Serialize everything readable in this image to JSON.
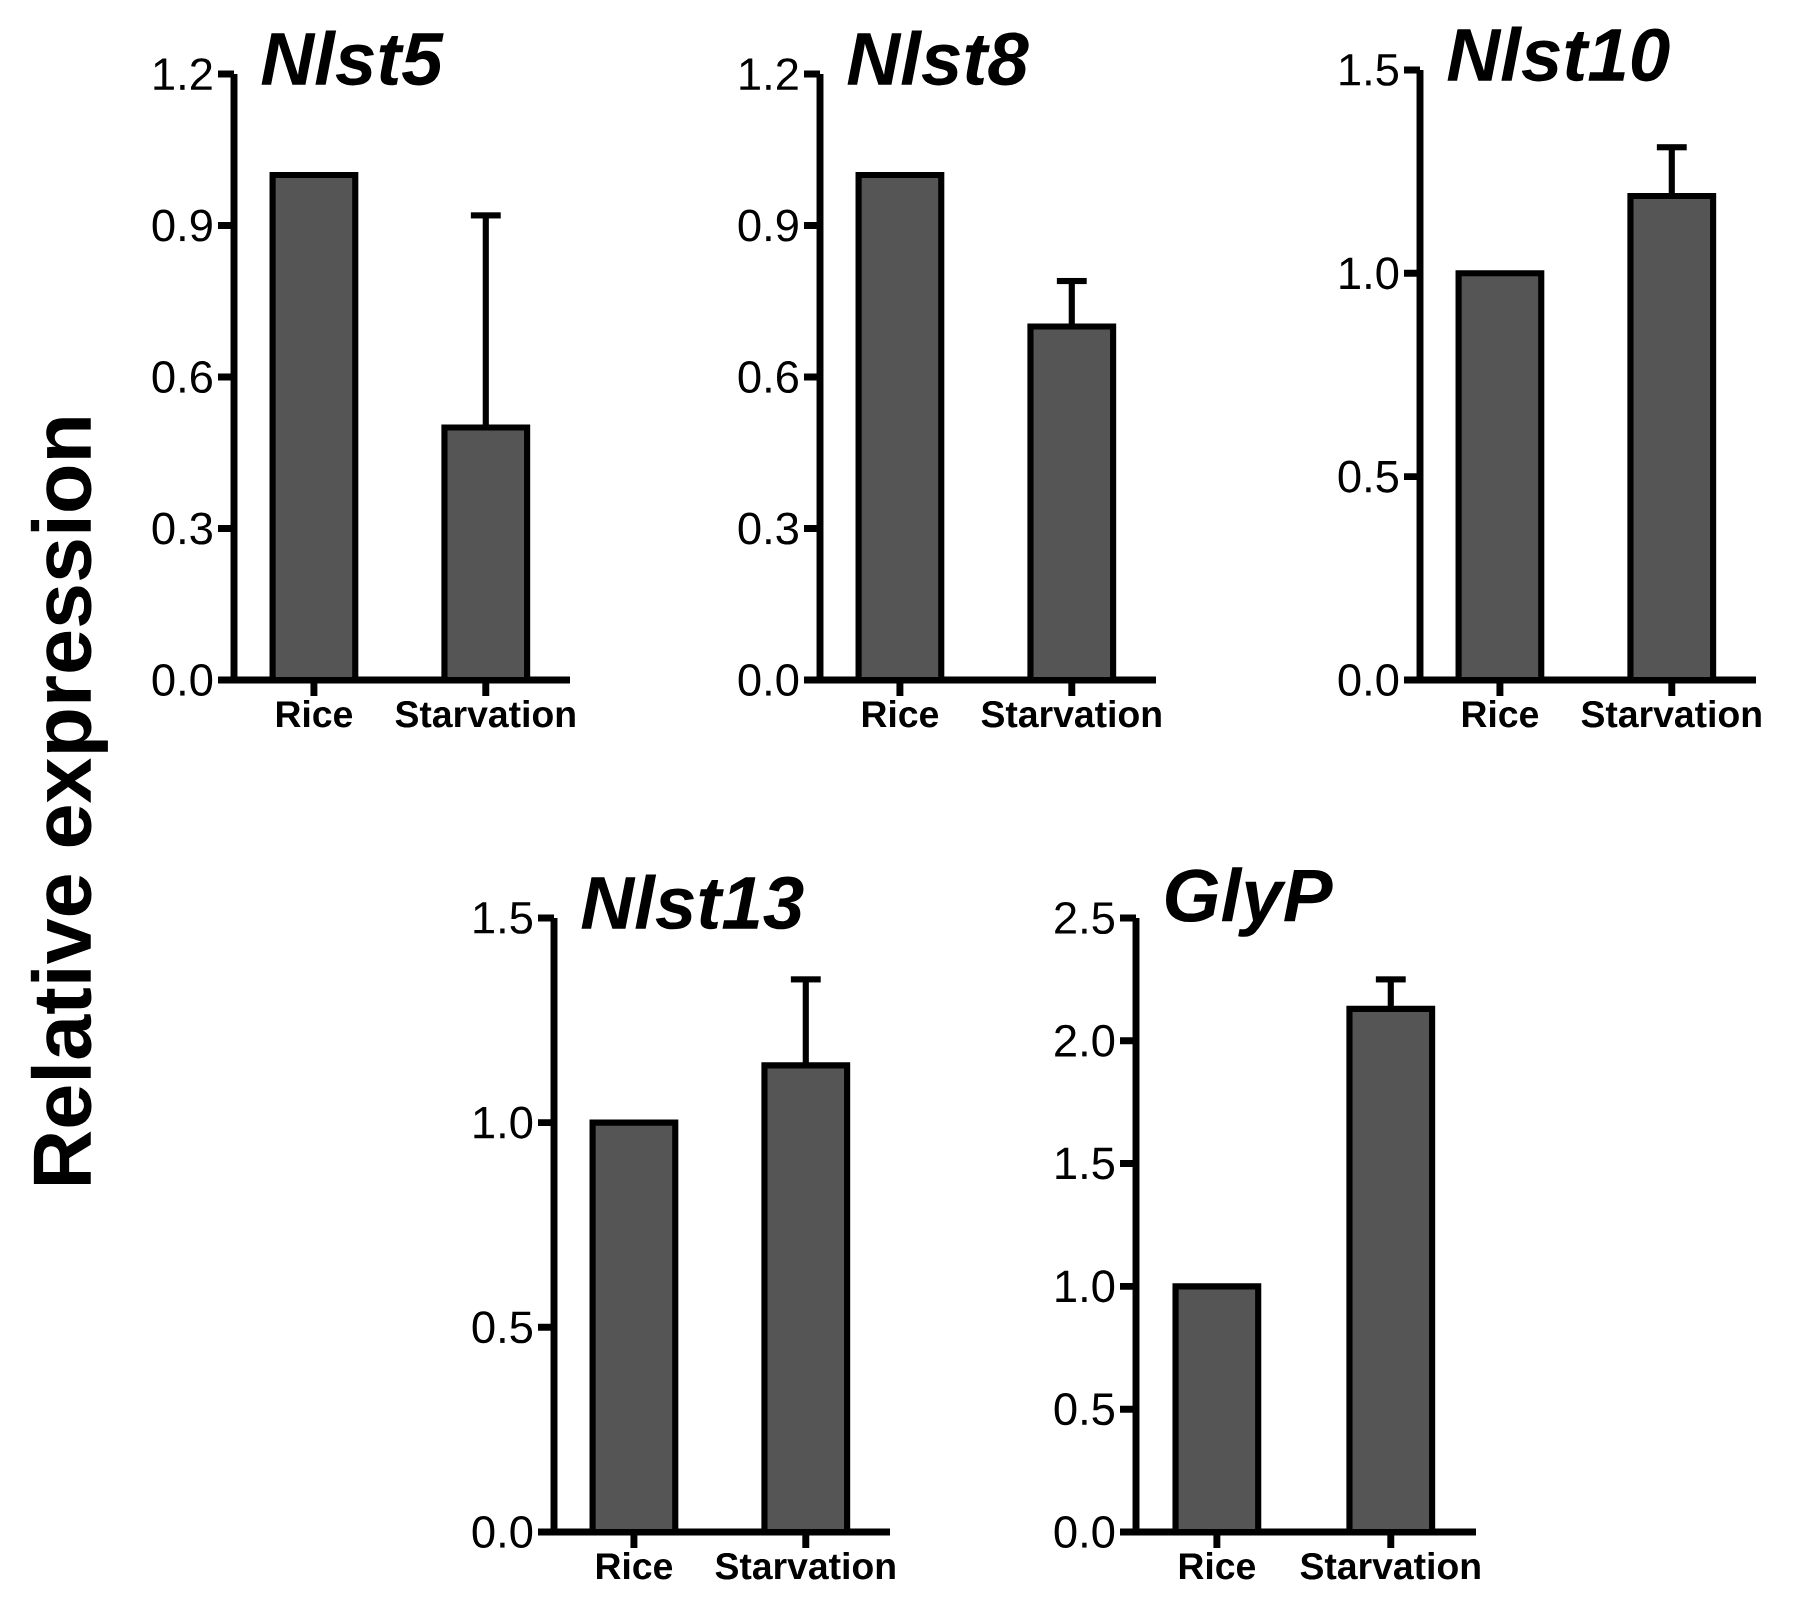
{
  "chart_data": [
    {
      "type": "bar",
      "title": "Nlst5",
      "ylabel": "Relative expression",
      "categories": [
        "Rice",
        "Starvation"
      ],
      "values": [
        1.0,
        0.5
      ],
      "errors": [
        null,
        0.42
      ],
      "color": "#555555",
      "ylim": [
        0,
        1.2
      ],
      "yticks": [
        {
          "value": 0,
          "label": "0.0"
        },
        0.3,
        0.6,
        0.9,
        1.2
      ]
    },
    {
      "type": "bar",
      "title": "Nlst8",
      "categories": [
        "Rice",
        "Starvation"
      ],
      "values": [
        1.0,
        0.7
      ],
      "errors": [
        null,
        0.09
      ],
      "color": "#555555",
      "ylim": [
        0,
        1.2
      ],
      "yticks": [
        {
          "value": 0,
          "label": "0.0"
        },
        0.3,
        0.6,
        0.9,
        1.2
      ]
    },
    {
      "type": "bar",
      "title": "Nlst10",
      "categories": [
        "Rice",
        "Starvation"
      ],
      "values": [
        1.0,
        1.19
      ],
      "errors": [
        null,
        0.12
      ],
      "color": "#555555",
      "ylim": [
        0,
        1.5
      ],
      "yticks": [
        {
          "value": 0,
          "label": "0.0"
        },
        0.5,
        {
          "value": 1,
          "label": "1.0"
        },
        1.5
      ]
    },
    {
      "type": "bar",
      "title": "Nlst13",
      "categories": [
        "Rice",
        "Starvation"
      ],
      "values": [
        1.0,
        1.14
      ],
      "errors": [
        null,
        0.21
      ],
      "color": "#555555",
      "ylim": [
        0,
        1.5
      ],
      "yticks": [
        {
          "value": 0,
          "label": "0.0"
        },
        0.5,
        {
          "value": 1,
          "label": "1.0"
        },
        1.5
      ]
    },
    {
      "type": "bar",
      "title": "GlyP",
      "categories": [
        "Rice",
        "Starvation"
      ],
      "values": [
        1.0,
        2.13
      ],
      "errors": [
        null,
        0.12
      ],
      "color": "#555555",
      "ylim": [
        0,
        2.5
      ],
      "yticks": [
        {
          "value": 0,
          "label": "0.0"
        },
        0.5,
        {
          "value": 1,
          "label": "1.0"
        },
        1.5,
        {
          "value": 2,
          "label": "2.0"
        },
        2.5
      ]
    }
  ]
}
